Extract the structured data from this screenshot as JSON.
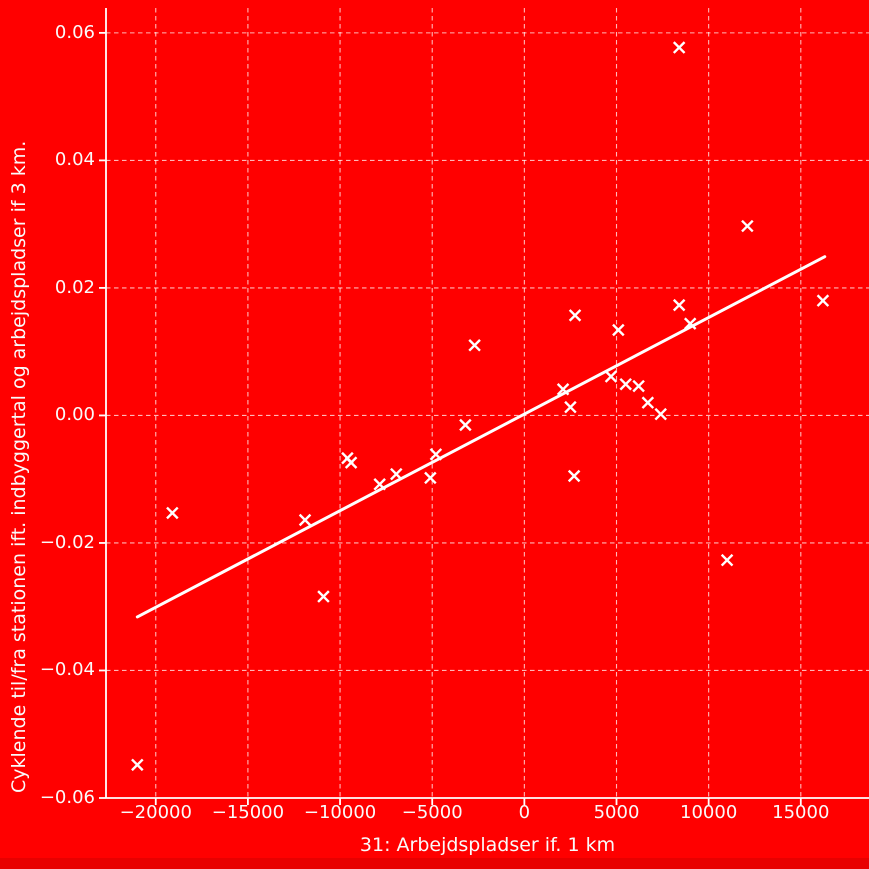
{
  "chart_data": {
    "type": "scatter",
    "title": "",
    "xlabel": "31: Arbejdspladser if. 1 km",
    "ylabel": "Cyklende til/fra stationen ift. indbyggertal og arbejdspladser if 3 km.",
    "marker": "x",
    "grid": true,
    "legend": "none",
    "xlim": [
      -22700,
      18700
    ],
    "ylim": [
      -0.06,
      0.0639
    ],
    "x_ticks": [
      -20000,
      -15000,
      -10000,
      -5000,
      0,
      5000,
      10000,
      15000
    ],
    "y_ticks": [
      0.06,
      0.04,
      0.02,
      0.0,
      -0.02,
      -0.04,
      -0.06
    ],
    "points": [
      [
        -21000,
        -0.0548
      ],
      [
        -19100,
        -0.0153
      ],
      [
        -11900,
        -0.0164
      ],
      [
        -10900,
        -0.0284
      ],
      [
        -9600,
        -0.0067
      ],
      [
        -9400,
        -0.0074
      ],
      [
        -7850,
        -0.0108
      ],
      [
        -6950,
        -0.0092
      ],
      [
        -5100,
        -0.0098
      ],
      [
        -4800,
        -0.0061
      ],
      [
        -3200,
        -0.0015
      ],
      [
        -2700,
        0.011
      ],
      [
        2100,
        0.0041
      ],
      [
        2500,
        0.0013
      ],
      [
        2750,
        0.0157
      ],
      [
        2700,
        -0.0095
      ],
      [
        4700,
        0.0061
      ],
      [
        5100,
        0.0134
      ],
      [
        5500,
        0.0049
      ],
      [
        6200,
        0.0046
      ],
      [
        6700,
        0.002
      ],
      [
        7400,
        0.0002
      ],
      [
        8400,
        0.0577
      ],
      [
        8400,
        0.0173
      ],
      [
        9000,
        0.0144
      ],
      [
        11000,
        -0.0227
      ],
      [
        12100,
        0.0297
      ],
      [
        16200,
        0.018
      ]
    ],
    "trend_line": {
      "x1": -21000,
      "y1": -0.0316,
      "x2": 16300,
      "y2": 0.0249
    },
    "colors": {
      "background": "#ff0000",
      "bottom_strip": "#e80000",
      "foreground": "#ffffff",
      "text": "#fafafa",
      "grid": "rgba(255,255,255,0.72)"
    }
  }
}
